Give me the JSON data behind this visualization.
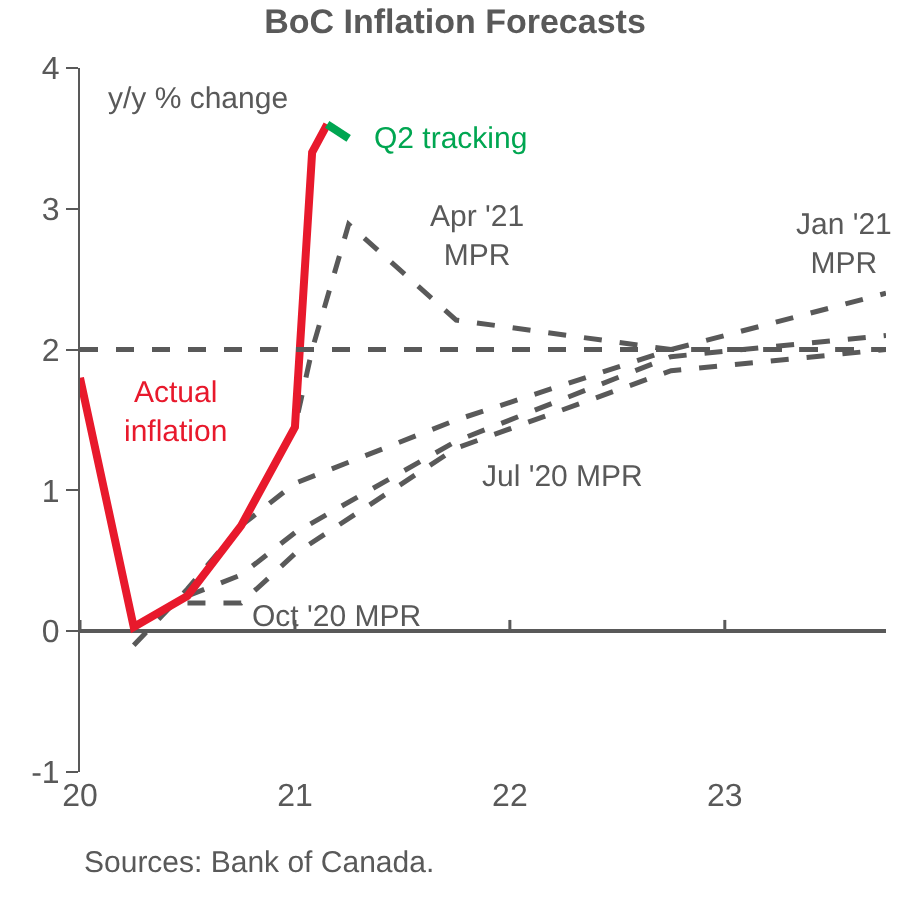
{
  "chart_data": {
    "type": "line",
    "title": "BoC Inflation Forecasts",
    "ylabel": "y/y % change",
    "xlim": [
      20,
      23.75
    ],
    "xticks": [
      20,
      21,
      22,
      23
    ],
    "ylim": [
      -1,
      4
    ],
    "yticks": [
      -1,
      0,
      1,
      2,
      3,
      4
    ],
    "legend": false,
    "series": [
      {
        "name": "Jul '20 MPR",
        "color": "#595959",
        "line_style": "dashed",
        "x": [
          20.5,
          20.75,
          21.0,
          21.75,
          22.75,
          23.75
        ],
        "values": [
          0.25,
          0.4,
          0.7,
          1.35,
          1.95,
          2.1
        ]
      },
      {
        "name": "Oct '20 MPR",
        "color": "#595959",
        "line_style": "dashed",
        "x": [
          20.5,
          20.75,
          21.0,
          21.75,
          22.75,
          23.75
        ],
        "values": [
          0.2,
          0.2,
          0.55,
          1.3,
          1.85,
          2.0
        ]
      },
      {
        "name": "Jan '21 MPR",
        "color": "#595959",
        "line_style": "dashed",
        "x": [
          20.75,
          21.0,
          21.75,
          22.75,
          23.75
        ],
        "values": [
          0.75,
          1.05,
          1.5,
          2.0,
          2.4
        ]
      },
      {
        "name": "Apr '21 MPR",
        "color": "#595959",
        "line_style": "dashed",
        "x": [
          20.25,
          20.5,
          20.75,
          21.0,
          21.08,
          21.25,
          21.75,
          22.75,
          23.75
        ],
        "values": [
          -0.1,
          0.3,
          0.75,
          1.45,
          2.0,
          2.89,
          2.21,
          2.0,
          2.0
        ]
      },
      {
        "name": "Actual inflation",
        "color": "#e8192c",
        "line_style": "solid",
        "x": [
          20.0,
          20.25,
          20.5,
          20.75,
          21.0,
          21.08,
          21.15
        ],
        "values": [
          1.8,
          0.03,
          0.25,
          0.75,
          1.45,
          3.4,
          3.6
        ]
      },
      {
        "name": "Q2 tracking",
        "color": "#00a651",
        "line_style": "solid",
        "x": [
          21.15,
          21.25
        ],
        "values": [
          3.6,
          3.5
        ]
      }
    ],
    "ref_lines": [
      {
        "axis": "y",
        "value": 2,
        "color": "#595959",
        "line_style": "dashed"
      }
    ],
    "annotations": [
      "Sources: Bank of Canada."
    ]
  }
}
